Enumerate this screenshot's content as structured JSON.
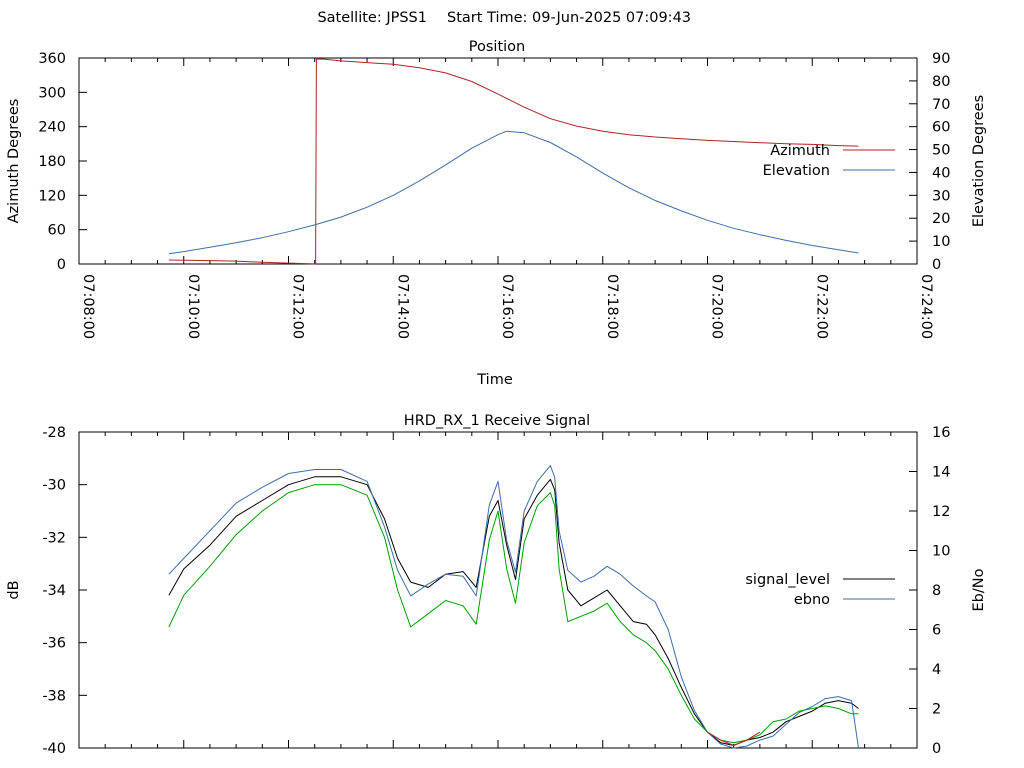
{
  "header": {
    "satellite_label": "Satellite: JPSS1",
    "start_time_label": "Start Time: 09-Jun-2025 07:09:43"
  },
  "chart_data": [
    {
      "type": "line",
      "title": "Position",
      "xlabel": "Time",
      "ylabel_left": "Azimuth Degrees",
      "ylabel_right": "Elevation Degrees",
      "x_range": [
        "07:08:00",
        "07:24:00"
      ],
      "x_ticks": [
        "07:08:00",
        "07:10:00",
        "07:12:00",
        "07:14:00",
        "07:16:00",
        "07:18:00",
        "07:20:00",
        "07:22:00",
        "07:24:00"
      ],
      "ylim_left": [
        0,
        360
      ],
      "yticks_left": [
        0,
        60,
        120,
        180,
        240,
        300,
        360
      ],
      "ylim_right": [
        0,
        90
      ],
      "yticks_right": [
        0,
        10,
        20,
        30,
        40,
        50,
        60,
        70,
        80,
        90
      ],
      "legend_position": "right",
      "grid": false,
      "series": [
        {
          "name": "Azimuth",
          "axis": "left",
          "color": "#b22222",
          "points": [
            [
              "07:09:43",
              7
            ],
            [
              "07:10:30",
              6
            ],
            [
              "07:11:00",
              5
            ],
            [
              "07:11:30",
              3
            ],
            [
              "07:12:00",
              1.5
            ],
            [
              "07:12:25",
              0.6
            ],
            [
              "07:12:31",
              0.2
            ],
            [
              "07:12:32",
              358
            ],
            [
              "07:12:40",
              358
            ],
            [
              "07:13:00",
              355
            ],
            [
              "07:13:30",
              352
            ],
            [
              "07:14:00",
              349
            ],
            [
              "07:14:30",
              343
            ],
            [
              "07:15:00",
              334
            ],
            [
              "07:15:30",
              319
            ],
            [
              "07:16:00",
              297
            ],
            [
              "07:16:30",
              274
            ],
            [
              "07:17:00",
              254
            ],
            [
              "07:17:30",
              241
            ],
            [
              "07:18:00",
              232
            ],
            [
              "07:18:30",
              226
            ],
            [
              "07:19:00",
              222
            ],
            [
              "07:19:30",
              219
            ],
            [
              "07:20:00",
              216
            ],
            [
              "07:20:30",
              214
            ],
            [
              "07:21:00",
              212
            ],
            [
              "07:21:30",
              210
            ],
            [
              "07:22:00",
              209
            ],
            [
              "07:22:30",
              207
            ],
            [
              "07:22:53",
              206
            ]
          ]
        },
        {
          "name": "Elevation",
          "axis": "right",
          "color": "#3c6ea8",
          "points": [
            [
              "07:09:43",
              4.5
            ],
            [
              "07:10:00",
              5.4
            ],
            [
              "07:10:30",
              7.3
            ],
            [
              "07:11:00",
              9.3
            ],
            [
              "07:11:30",
              11.5
            ],
            [
              "07:12:00",
              14.1
            ],
            [
              "07:12:30",
              17.1
            ],
            [
              "07:13:00",
              20.5
            ],
            [
              "07:13:30",
              24.8
            ],
            [
              "07:14:00",
              30.0
            ],
            [
              "07:14:30",
              36.3
            ],
            [
              "07:15:00",
              43.3
            ],
            [
              "07:15:30",
              50.6
            ],
            [
              "07:16:00",
              56.5
            ],
            [
              "07:16:10",
              58.0
            ],
            [
              "07:16:30",
              57.3
            ],
            [
              "07:17:00",
              53.1
            ],
            [
              "07:17:30",
              46.8
            ],
            [
              "07:18:00",
              39.7
            ],
            [
              "07:18:30",
              33.3
            ],
            [
              "07:19:00",
              27.8
            ],
            [
              "07:19:30",
              23.2
            ],
            [
              "07:20:00",
              19.1
            ],
            [
              "07:20:30",
              15.6
            ],
            [
              "07:21:00",
              12.8
            ],
            [
              "07:21:30",
              10.3
            ],
            [
              "07:22:00",
              8.1
            ],
            [
              "07:22:30",
              6.2
            ],
            [
              "07:22:53",
              4.8
            ]
          ]
        }
      ]
    },
    {
      "type": "line",
      "title": "HRD_RX_1 Receive Signal",
      "ylabel_left": "dB",
      "ylabel_right": "Eb/No",
      "ylim_left": [
        -40,
        -28
      ],
      "yticks_left": [
        -40,
        -38,
        -36,
        -34,
        -32,
        -30,
        -28
      ],
      "ylim_right": [
        0,
        16
      ],
      "yticks_right": [
        0,
        2,
        4,
        6,
        8,
        10,
        12,
        14,
        16
      ],
      "x_range": [
        "07:08:00",
        "07:24:00"
      ],
      "legend_position": "right",
      "grid": false,
      "series": [
        {
          "name": "signal_level",
          "axis": "left",
          "color": "#000000",
          "legend_color": "#000000",
          "points": [
            [
              "07:09:43",
              -34.2
            ],
            [
              "07:10:00",
              -33.2
            ],
            [
              "07:10:30",
              -32.3
            ],
            [
              "07:11:00",
              -31.2
            ],
            [
              "07:11:30",
              -30.6
            ],
            [
              "07:12:00",
              -30.0
            ],
            [
              "07:12:30",
              -29.7
            ],
            [
              "07:13:00",
              -29.7
            ],
            [
              "07:13:30",
              -30.0
            ],
            [
              "07:13:50",
              -31.3
            ],
            [
              "07:14:05",
              -32.8
            ],
            [
              "07:14:20",
              -33.7
            ],
            [
              "07:14:40",
              -33.9
            ],
            [
              "07:15:00",
              -33.4
            ],
            [
              "07:15:20",
              -33.3
            ],
            [
              "07:15:35",
              -33.9
            ],
            [
              "07:15:50",
              -31.2
            ],
            [
              "07:16:00",
              -30.6
            ],
            [
              "07:16:10",
              -32.3
            ],
            [
              "07:16:20",
              -33.6
            ],
            [
              "07:16:30",
              -31.3
            ],
            [
              "07:16:45",
              -30.4
            ],
            [
              "07:17:00",
              -29.8
            ],
            [
              "07:17:05",
              -30.2
            ],
            [
              "07:17:10",
              -32.2
            ],
            [
              "07:17:20",
              -34.0
            ],
            [
              "07:17:35",
              -34.6
            ],
            [
              "07:17:50",
              -34.3
            ],
            [
              "07:18:05",
              -34.0
            ],
            [
              "07:18:20",
              -34.6
            ],
            [
              "07:18:35",
              -35.2
            ],
            [
              "07:18:50",
              -35.3
            ],
            [
              "07:19:00",
              -35.7
            ],
            [
              "07:19:15",
              -36.6
            ],
            [
              "07:19:30",
              -37.7
            ],
            [
              "07:19:45",
              -38.7
            ],
            [
              "07:20:00",
              -39.4
            ],
            [
              "07:20:15",
              -39.8
            ],
            [
              "07:20:30",
              -39.9
            ],
            [
              "07:20:45",
              -39.7
            ],
            [
              "07:21:00",
              -39.6
            ],
            [
              "07:21:15",
              -39.4
            ],
            [
              "07:21:30",
              -39.0
            ],
            [
              "07:21:45",
              -38.8
            ],
            [
              "07:22:00",
              -38.6
            ],
            [
              "07:22:15",
              -38.3
            ],
            [
              "07:22:30",
              -38.2
            ],
            [
              "07:22:45",
              -38.3
            ],
            [
              "07:22:53",
              -38.5
            ]
          ]
        },
        {
          "name": "ebno",
          "axis": "right",
          "color": "#3c6ea8",
          "legend_color": "#3c6ea8",
          "points": [
            [
              "07:09:43",
              8.8
            ],
            [
              "07:10:00",
              9.6
            ],
            [
              "07:10:30",
              11.0
            ],
            [
              "07:11:00",
              12.4
            ],
            [
              "07:11:30",
              13.2
            ],
            [
              "07:12:00",
              13.9
            ],
            [
              "07:12:30",
              14.1
            ],
            [
              "07:13:00",
              14.1
            ],
            [
              "07:13:30",
              13.5
            ],
            [
              "07:13:50",
              11.2
            ],
            [
              "07:14:05",
              9.0
            ],
            [
              "07:14:20",
              7.7
            ],
            [
              "07:14:40",
              8.3
            ],
            [
              "07:15:00",
              8.8
            ],
            [
              "07:15:20",
              8.7
            ],
            [
              "07:15:35",
              7.7
            ],
            [
              "07:15:50",
              12.3
            ],
            [
              "07:16:00",
              13.5
            ],
            [
              "07:16:10",
              10.5
            ],
            [
              "07:16:20",
              8.9
            ],
            [
              "07:16:30",
              12.0
            ],
            [
              "07:16:45",
              13.5
            ],
            [
              "07:17:00",
              14.3
            ],
            [
              "07:17:05",
              13.7
            ],
            [
              "07:17:10",
              11.0
            ],
            [
              "07:17:20",
              9.0
            ],
            [
              "07:17:35",
              8.4
            ],
            [
              "07:17:50",
              8.7
            ],
            [
              "07:18:05",
              9.2
            ],
            [
              "07:18:20",
              8.8
            ],
            [
              "07:18:35",
              8.2
            ],
            [
              "07:18:50",
              7.7
            ],
            [
              "07:19:00",
              7.4
            ],
            [
              "07:19:15",
              6.0
            ],
            [
              "07:19:30",
              3.6
            ],
            [
              "07:19:45",
              1.9
            ],
            [
              "07:20:00",
              0.8
            ],
            [
              "07:20:15",
              0.2
            ],
            [
              "07:20:30",
              0.0
            ],
            [
              "07:20:45",
              0.1
            ],
            [
              "07:21:00",
              0.4
            ],
            [
              "07:21:15",
              0.6
            ],
            [
              "07:21:30",
              1.2
            ],
            [
              "07:21:45",
              1.8
            ],
            [
              "07:22:00",
              2.1
            ],
            [
              "07:22:15",
              2.5
            ],
            [
              "07:22:30",
              2.6
            ],
            [
              "07:22:45",
              2.4
            ],
            [
              "07:22:53",
              0.0
            ]
          ]
        },
        {
          "name": "",
          "axis": "left",
          "color": "#00a000",
          "points": [
            [
              "07:09:43",
              -35.4
            ],
            [
              "07:10:00",
              -34.2
            ],
            [
              "07:10:30",
              -33.1
            ],
            [
              "07:11:00",
              -31.9
            ],
            [
              "07:11:30",
              -31.0
            ],
            [
              "07:12:00",
              -30.3
            ],
            [
              "07:12:30",
              -30.0
            ],
            [
              "07:13:00",
              -30.0
            ],
            [
              "07:13:30",
              -30.4
            ],
            [
              "07:13:50",
              -32.0
            ],
            [
              "07:14:05",
              -34.0
            ],
            [
              "07:14:20",
              -35.4
            ],
            [
              "07:14:40",
              -34.9
            ],
            [
              "07:15:00",
              -34.4
            ],
            [
              "07:15:20",
              -34.6
            ],
            [
              "07:15:35",
              -35.3
            ],
            [
              "07:15:50",
              -32.1
            ],
            [
              "07:16:00",
              -31.0
            ],
            [
              "07:16:10",
              -33.2
            ],
            [
              "07:16:20",
              -34.5
            ],
            [
              "07:16:30",
              -32.2
            ],
            [
              "07:16:45",
              -30.8
            ],
            [
              "07:17:00",
              -30.3
            ],
            [
              "07:17:05",
              -30.8
            ],
            [
              "07:17:10",
              -33.2
            ],
            [
              "07:17:20",
              -35.2
            ],
            [
              "07:17:35",
              -35.0
            ],
            [
              "07:17:50",
              -34.8
            ],
            [
              "07:18:05",
              -34.5
            ],
            [
              "07:18:20",
              -35.2
            ],
            [
              "07:18:35",
              -35.7
            ],
            [
              "07:18:50",
              -36.0
            ],
            [
              "07:19:00",
              -36.3
            ],
            [
              "07:19:15",
              -37.0
            ],
            [
              "07:19:30",
              -38.0
            ],
            [
              "07:19:45",
              -38.9
            ],
            [
              "07:20:00",
              -39.4
            ],
            [
              "07:20:15",
              -39.7
            ],
            [
              "07:20:30",
              -39.8
            ],
            [
              "07:20:45",
              -39.7
            ],
            [
              "07:21:00",
              -39.5
            ],
            [
              "07:21:15",
              -39.0
            ],
            [
              "07:21:30",
              -38.9
            ],
            [
              "07:21:45",
              -38.6
            ],
            [
              "07:22:00",
              -38.5
            ],
            [
              "07:22:15",
              -38.4
            ],
            [
              "07:22:30",
              -38.5
            ],
            [
              "07:22:45",
              -38.7
            ],
            [
              "07:22:53",
              -38.7
            ]
          ]
        },
        {
          "name": "",
          "axis": "left",
          "color": "#b22222",
          "points": [
            [
              "07:20:00",
              -39.4
            ],
            [
              "07:20:15",
              -39.7
            ],
            [
              "07:20:30",
              -39.9
            ],
            [
              "07:20:45",
              -39.7
            ],
            [
              "07:21:00",
              -39.4
            ]
          ]
        }
      ]
    }
  ]
}
